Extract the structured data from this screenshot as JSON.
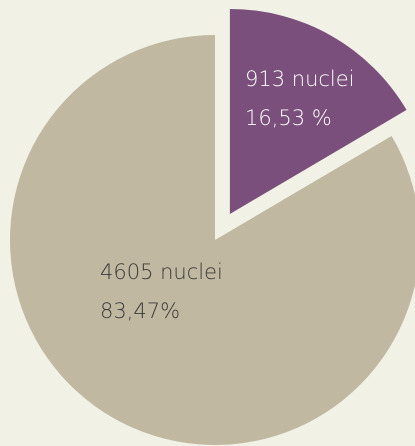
{
  "chart_data": {
    "type": "pie",
    "labels": [
      "913 nuclei",
      "4605 nuclei"
    ],
    "values": [
      16.53,
      83.47
    ],
    "value_labels": [
      "16,53 %",
      "83,47%"
    ],
    "colors": [
      "#7b4f7c",
      "#c0b8a0"
    ],
    "label_colors": [
      "#ffffff",
      "#3a3a3a"
    ]
  }
}
